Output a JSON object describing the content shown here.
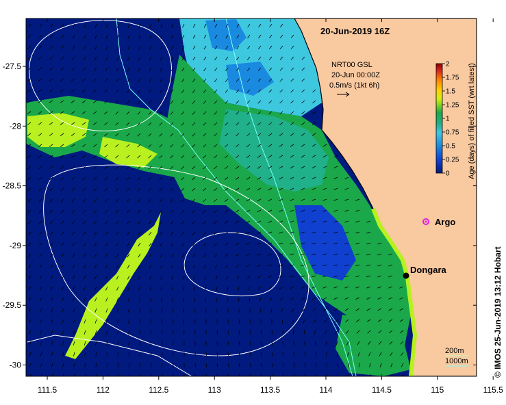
{
  "title": "20-Jun-2019 16Z",
  "current_source": {
    "line1": "NRT00 GSL",
    "line2": "20-Jun 00:00Z",
    "line3": "0.5m/s (1kt 6h)"
  },
  "colorbar": {
    "label": "Age (days) of filled SST (wrt latest)",
    "ticks": [
      "2",
      "1.75",
      "1.5",
      "1.25",
      "1",
      "0.75",
      "0.5",
      "0.25",
      "0"
    ],
    "colors": [
      "#8b0000",
      "#d42020",
      "#ff7a00",
      "#ffd000",
      "#d4ee10",
      "#7ed321",
      "#1aa84a",
      "#20b08a",
      "#3ec8e0",
      "#1a8ae0",
      "#1040d0",
      "#001a80"
    ]
  },
  "places": {
    "argo": "Argo",
    "dongara": "Dongara"
  },
  "depth_legend": {
    "shallow": "200m",
    "deep": "1000m"
  },
  "x_ticks": [
    "111.5",
    "112",
    "112.5",
    "113",
    "113.5",
    "114",
    "114.5",
    "115",
    "115.5"
  ],
  "y_ticks": [
    "-27.5",
    "-28",
    "-28.5",
    "-29",
    "-29.5",
    "-30"
  ],
  "credit": "© IMOS 25-Jun-2019 13:12 Hobart",
  "colors": {
    "land": "#f9c9a0",
    "ocean_deep": "#001a80",
    "mid_blue": "#1a8ae0",
    "cyan": "#3ec8e0",
    "green": "#1aa84a",
    "teal_green": "#20b08a",
    "yellow_green": "#b8f020",
    "argo_marker": "#e020e0"
  }
}
